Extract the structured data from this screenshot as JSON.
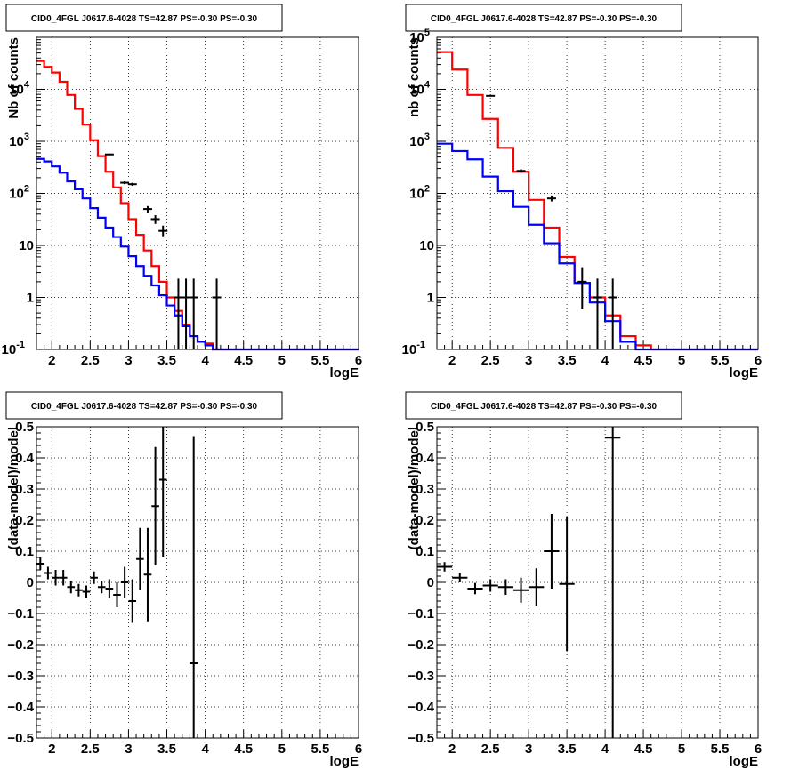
{
  "chart_data": [
    {
      "type": "line",
      "title": "CID0_4FGL J0617.6-4028 TS=42.87 PS=-0.30 PS=-0.30",
      "xlabel": "logE",
      "ylabel": "Nb of counts",
      "yscale": "log",
      "xlim": [
        1.8,
        6
      ],
      "ylim": [
        0.1,
        100000
      ],
      "grid": true,
      "x_ticks": [
        "2",
        "2.5",
        "3",
        "3.5",
        "4",
        "4.5",
        "5",
        "5.5",
        "6"
      ],
      "y_ticks": [
        "10^-1",
        "1",
        "10",
        "10^2",
        "10^3",
        "10^4"
      ],
      "bin_edges": [
        1.8,
        1.9,
        2.0,
        2.1,
        2.2,
        2.3,
        2.4,
        2.5,
        2.6,
        2.7,
        2.8,
        2.9,
        3.0,
        3.1,
        3.2,
        3.3,
        3.4,
        3.5,
        3.6,
        3.7,
        3.8,
        3.9,
        4.0,
        4.1,
        4.2,
        4.3,
        4.4,
        6.0
      ],
      "series": [
        {
          "color": "#ff0000",
          "kind": "step",
          "values": [
            35000,
            27000,
            21000,
            14000,
            7800,
            4200,
            2100,
            1050,
            520,
            260,
            130,
            65,
            32,
            16,
            8,
            4,
            2.0,
            1.0,
            0.55,
            0.3,
            0.18,
            0.14,
            0.13,
            0.1,
            0.1,
            0.1,
            0.1
          ]
        },
        {
          "color": "#0000ff",
          "kind": "step",
          "values": [
            460,
            410,
            330,
            250,
            170,
            120,
            80,
            52,
            34,
            22,
            14.5,
            9.5,
            6.2,
            4.0,
            2.6,
            1.7,
            1.1,
            0.7,
            0.45,
            0.28,
            0.18,
            0.14,
            0.12,
            0.1,
            0.1,
            0.1,
            0.1
          ]
        },
        {
          "color": "#000000",
          "kind": "errorbar",
          "points": [
            {
              "x": 2.75,
              "y": 560,
              "lo": 540,
              "hi": 580
            },
            {
              "x": 2.95,
              "y": 160,
              "lo": 150,
              "hi": 170
            },
            {
              "x": 3.05,
              "y": 150,
              "lo": 140,
              "hi": 160
            },
            {
              "x": 3.25,
              "y": 50,
              "lo": 43,
              "hi": 57
            },
            {
              "x": 3.35,
              "y": 32,
              "lo": 26,
              "hi": 38
            },
            {
              "x": 3.45,
              "y": 19,
              "lo": 15,
              "hi": 24
            },
            {
              "x": 3.65,
              "y": 1.0,
              "lo": 0.1,
              "hi": 2.3
            },
            {
              "x": 3.75,
              "y": 1.0,
              "lo": 0.1,
              "hi": 2.3
            },
            {
              "x": 3.85,
              "y": 1.0,
              "lo": 0.1,
              "hi": 2.3
            },
            {
              "x": 4.15,
              "y": 1.0,
              "lo": 0.1,
              "hi": 2.3
            }
          ]
        }
      ]
    },
    {
      "type": "line",
      "title": "CID0_4FGL J0617.6-4028 TS=42.87 PS=-0.30 PS=-0.30",
      "xlabel": "logE",
      "ylabel": "nb of counts",
      "yscale": "log",
      "xlim": [
        1.8,
        6
      ],
      "ylim": [
        0.1,
        100000
      ],
      "grid": true,
      "x_ticks": [
        "2",
        "2.5",
        "3",
        "3.5",
        "4",
        "4.5",
        "5",
        "5.5",
        "6"
      ],
      "y_ticks": [
        "10^-1",
        "1",
        "10",
        "10^2",
        "10^3",
        "10^4",
        "10^5"
      ],
      "bin_edges": [
        1.8,
        2.0,
        2.2,
        2.4,
        2.6,
        2.8,
        3.0,
        3.2,
        3.4,
        3.6,
        3.8,
        4.0,
        4.2,
        4.4,
        4.6,
        6.0
      ],
      "series": [
        {
          "color": "#ff0000",
          "kind": "step",
          "values": [
            52000,
            24000,
            7800,
            2700,
            750,
            260,
            75,
            22,
            6,
            1.9,
            1.0,
            0.45,
            0.18,
            0.12,
            0.1
          ]
        },
        {
          "color": "#0000ff",
          "kind": "step",
          "values": [
            900,
            650,
            450,
            210,
            110,
            55,
            25,
            11,
            4.5,
            1.9,
            0.8,
            0.35,
            0.14,
            0.1,
            0.1
          ]
        },
        {
          "color": "#000000",
          "kind": "errorbar",
          "points": [
            {
              "x": 2.5,
              "y": 7500,
              "lo": 7350,
              "hi": 7650
            },
            {
              "x": 2.9,
              "y": 270,
              "lo": 250,
              "hi": 290
            },
            {
              "x": 3.3,
              "y": 80,
              "lo": 70,
              "hi": 91
            },
            {
              "x": 3.7,
              "y": 2.0,
              "lo": 0.6,
              "hi": 3.8
            },
            {
              "x": 3.9,
              "y": 1.0,
              "lo": 0.1,
              "hi": 2.3
            },
            {
              "x": 4.1,
              "y": 1.0,
              "lo": 0.1,
              "hi": 2.3
            }
          ]
        }
      ]
    },
    {
      "type": "scatter",
      "title": "CID0_4FGL J0617.6-4028 TS=42.87 PS=-0.30 PS=-0.30",
      "xlabel": "logE",
      "ylabel": "(data-model)/model",
      "xlim": [
        1.8,
        6
      ],
      "ylim": [
        -0.5,
        0.5
      ],
      "grid": true,
      "x_ticks": [
        "2",
        "2.5",
        "3",
        "3.5",
        "4",
        "4.5",
        "5",
        "5.5",
        "6"
      ],
      "y_ticks": [
        "-0.5",
        "-0.4",
        "-0.3",
        "-0.2",
        "-0.1",
        "0",
        "0.1",
        "0.2",
        "0.3",
        "0.4",
        "0.5"
      ],
      "xerr": 0.05,
      "points": [
        {
          "x": 1.85,
          "y": 0.06,
          "err": 0.02
        },
        {
          "x": 1.95,
          "y": 0.03,
          "err": 0.02
        },
        {
          "x": 2.05,
          "y": 0.015,
          "err": 0.025
        },
        {
          "x": 2.15,
          "y": 0.015,
          "err": 0.025
        },
        {
          "x": 2.25,
          "y": -0.015,
          "err": 0.02
        },
        {
          "x": 2.35,
          "y": -0.025,
          "err": 0.02
        },
        {
          "x": 2.45,
          "y": -0.03,
          "err": 0.02
        },
        {
          "x": 2.55,
          "y": 0.015,
          "err": 0.02
        },
        {
          "x": 2.65,
          "y": -0.015,
          "err": 0.02
        },
        {
          "x": 2.75,
          "y": -0.02,
          "err": 0.03
        },
        {
          "x": 2.85,
          "y": -0.04,
          "err": 0.04
        },
        {
          "x": 2.95,
          "y": 0.0,
          "err": 0.05
        },
        {
          "x": 3.05,
          "y": -0.06,
          "err": 0.07
        },
        {
          "x": 3.15,
          "y": 0.075,
          "err": 0.1
        },
        {
          "x": 3.25,
          "y": 0.025,
          "err": 0.15
        },
        {
          "x": 3.35,
          "y": 0.245,
          "err": 0.19
        },
        {
          "x": 3.45,
          "y": 0.33,
          "err": 0.25
        },
        {
          "x": 3.85,
          "y": -0.26,
          "err": 0.73
        }
      ]
    },
    {
      "type": "scatter",
      "title": "CID0_4FGL J0617.6-4028 TS=42.87 PS=-0.30 PS=-0.30",
      "xlabel": "logE",
      "ylabel": "(data-model)/model",
      "xlim": [
        1.8,
        6
      ],
      "ylim": [
        -0.5,
        0.5
      ],
      "grid": true,
      "x_ticks": [
        "2",
        "2.5",
        "3",
        "3.5",
        "4",
        "4.5",
        "5",
        "5.5",
        "6"
      ],
      "y_ticks": [
        "-0.5",
        "-0.4",
        "-0.3",
        "-0.2",
        "-0.1",
        "0",
        "0.1",
        "0.2",
        "0.3",
        "0.4",
        "0.5"
      ],
      "xerr": 0.1,
      "points": [
        {
          "x": 1.9,
          "y": 0.05,
          "err": 0.015
        },
        {
          "x": 2.1,
          "y": 0.015,
          "err": 0.015
        },
        {
          "x": 2.3,
          "y": -0.02,
          "err": 0.018
        },
        {
          "x": 2.5,
          "y": -0.01,
          "err": 0.02
        },
        {
          "x": 2.7,
          "y": -0.015,
          "err": 0.025
        },
        {
          "x": 2.9,
          "y": -0.025,
          "err": 0.04
        },
        {
          "x": 3.1,
          "y": -0.015,
          "err": 0.06
        },
        {
          "x": 3.3,
          "y": 0.1,
          "err": 0.12
        },
        {
          "x": 3.5,
          "y": -0.005,
          "err": 0.215
        },
        {
          "x": 4.1,
          "y": 0.465,
          "err": 1.0
        }
      ]
    }
  ]
}
